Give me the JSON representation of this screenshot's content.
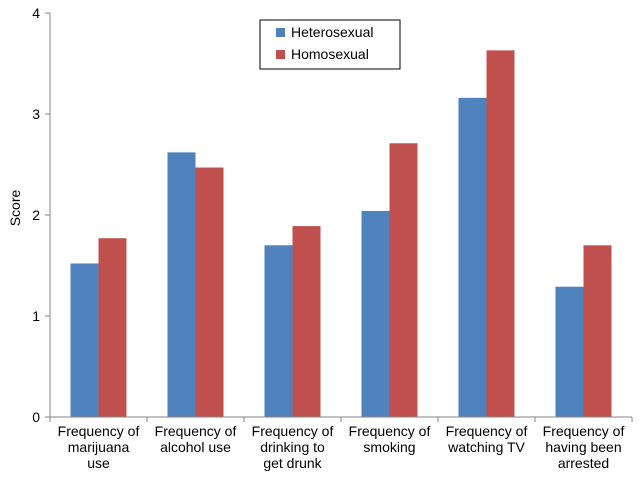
{
  "chart_data": {
    "type": "bar",
    "ylabel": "Score",
    "ylim": [
      0,
      4
    ],
    "yticks": [
      "0",
      "1",
      "2",
      "3",
      "4"
    ],
    "categories": [
      [
        "Frequency of",
        "marijuana",
        "use"
      ],
      [
        "Frequency of",
        "alcohol use"
      ],
      [
        "Frequency of",
        "drinking to",
        "get drunk"
      ],
      [
        "Frequency of",
        "smoking"
      ],
      [
        "Frequency of",
        "watching TV"
      ],
      [
        "Frequency of",
        "having been",
        "arrested"
      ]
    ],
    "series": [
      {
        "name": "Heterosexual",
        "color": "#4f81bd",
        "values": [
          1.52,
          2.62,
          1.7,
          2.04,
          3.16,
          1.29
        ]
      },
      {
        "name": "Homosexual",
        "color": "#c0504d",
        "values": [
          1.77,
          2.47,
          1.89,
          2.71,
          3.63,
          1.7
        ]
      }
    ],
    "legend_position": "top-center",
    "grid": false
  }
}
